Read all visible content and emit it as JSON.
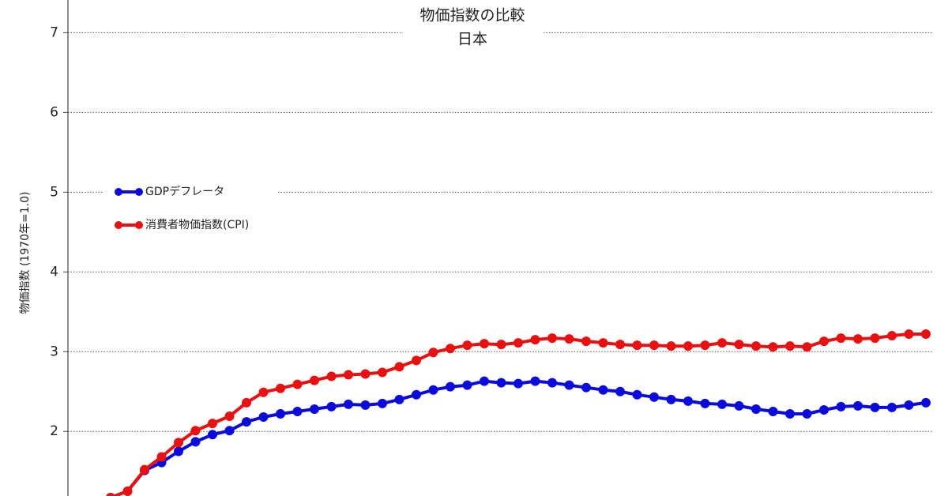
{
  "chart_data": {
    "type": "line",
    "title": "物価指数の比較",
    "subtitle": "日本",
    "y_label": "物価指数 (1970年=1.0)",
    "categories": [
      null,
      null,
      null,
      null,
      null,
      null,
      null,
      null,
      null,
      null,
      null,
      null,
      null,
      null,
      null,
      null,
      null,
      null,
      null,
      null,
      null,
      null,
      null,
      null,
      null,
      null,
      null,
      null,
      null,
      null,
      null,
      null,
      null,
      null,
      null,
      null,
      null,
      null,
      null,
      null,
      null,
      null,
      null,
      null,
      null,
      null,
      null,
      null,
      null
    ],
    "series": [
      {
        "name": "GDPデフレータ",
        "color": "#0a0adc",
        "values": [
          1.17,
          1.25,
          1.51,
          1.61,
          1.75,
          1.87,
          1.96,
          2.01,
          2.12,
          2.18,
          2.22,
          2.25,
          2.28,
          2.31,
          2.34,
          2.33,
          2.35,
          2.4,
          2.46,
          2.52,
          2.56,
          2.58,
          2.63,
          2.61,
          2.6,
          2.63,
          2.61,
          2.58,
          2.55,
          2.52,
          2.5,
          2.46,
          2.43,
          2.4,
          2.38,
          2.35,
          2.34,
          2.32,
          2.28,
          2.25,
          2.22,
          2.22,
          2.27,
          2.31,
          2.32,
          2.3,
          2.3,
          2.33,
          2.36
        ]
      },
      {
        "name": "消費者物価指数(CPI)",
        "color": "#e81010",
        "values": [
          1.17,
          1.25,
          1.52,
          1.68,
          1.86,
          2.01,
          2.1,
          2.19,
          2.36,
          2.49,
          2.54,
          2.59,
          2.64,
          2.69,
          2.71,
          2.72,
          2.74,
          2.81,
          2.89,
          2.99,
          3.04,
          3.08,
          3.1,
          3.09,
          3.11,
          3.15,
          3.17,
          3.16,
          3.13,
          3.11,
          3.09,
          3.08,
          3.08,
          3.07,
          3.07,
          3.08,
          3.11,
          3.09,
          3.07,
          3.06,
          3.07,
          3.06,
          3.13,
          3.17,
          3.16,
          3.17,
          3.2,
          3.22,
          3.22
        ]
      }
    ],
    "ylim": [
      1.19,
      7.41
    ],
    "yticks": [
      2,
      3,
      4,
      5,
      6,
      7
    ],
    "grid": true
  }
}
